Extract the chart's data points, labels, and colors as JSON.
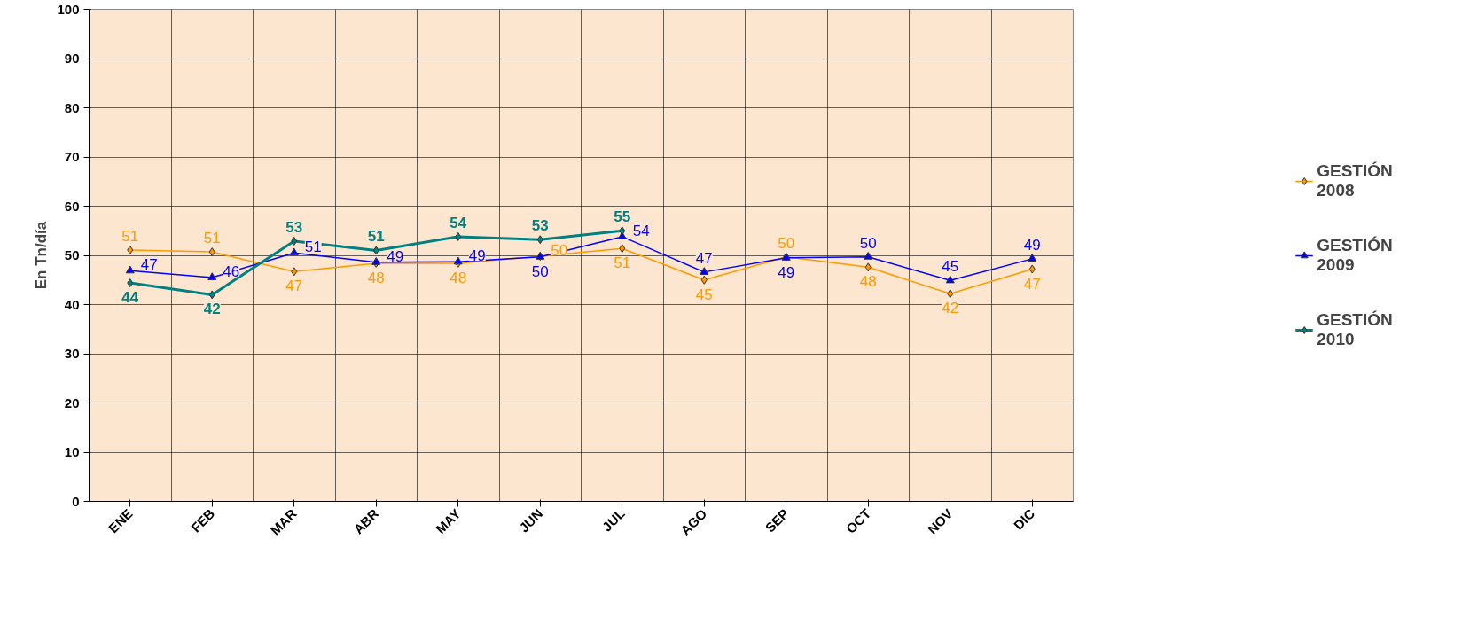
{
  "chart_data": {
    "type": "line",
    "ylabel": "En Tn/día",
    "categories": [
      "ENE",
      "FEB",
      "MAR",
      "ABR",
      "MAY",
      "JUN",
      "JUL",
      "AGO",
      "SEP",
      "OCT",
      "NOV",
      "DIC"
    ],
    "series": [
      {
        "name": "GESTIÓN 2008",
        "color": "#ff9900",
        "marker": "diamond",
        "values": [
          51.1,
          50.7,
          46.7,
          48.4,
          48.4,
          49.8,
          51.4,
          45.0,
          49.7,
          47.6,
          42.2,
          47.2
        ],
        "value_labels": [
          "51",
          "51",
          "47",
          "48",
          "48",
          "50",
          "51",
          "45",
          "50",
          "48",
          "42",
          "47"
        ]
      },
      {
        "name": "GESTIÓN 2009",
        "color": "#0000ff",
        "marker": "triangle",
        "values": [
          46.9,
          45.5,
          50.5,
          48.6,
          48.7,
          49.7,
          53.8,
          46.6,
          49.5,
          49.7,
          44.9,
          49.3
        ],
        "value_labels": [
          "47",
          "46",
          "51",
          "49",
          "49",
          "50",
          "54",
          "47",
          "49",
          "50",
          "45",
          "49"
        ]
      },
      {
        "name": "GESTIÓN 2010",
        "color": "#008080",
        "marker": "diamond",
        "values": [
          44.4,
          42.0,
          52.9,
          51.0,
          53.8,
          53.2,
          55.0,
          null,
          null,
          null,
          null,
          null
        ],
        "value_labels": [
          "44",
          "42",
          "53",
          "51",
          "54",
          "53",
          "55",
          null,
          null,
          null,
          null,
          null
        ]
      }
    ],
    "ylim": [
      0,
      100
    ],
    "yticks": [
      0,
      10,
      20,
      30,
      40,
      50,
      60,
      70,
      80,
      90,
      100
    ],
    "grid": true,
    "legend": "right"
  }
}
